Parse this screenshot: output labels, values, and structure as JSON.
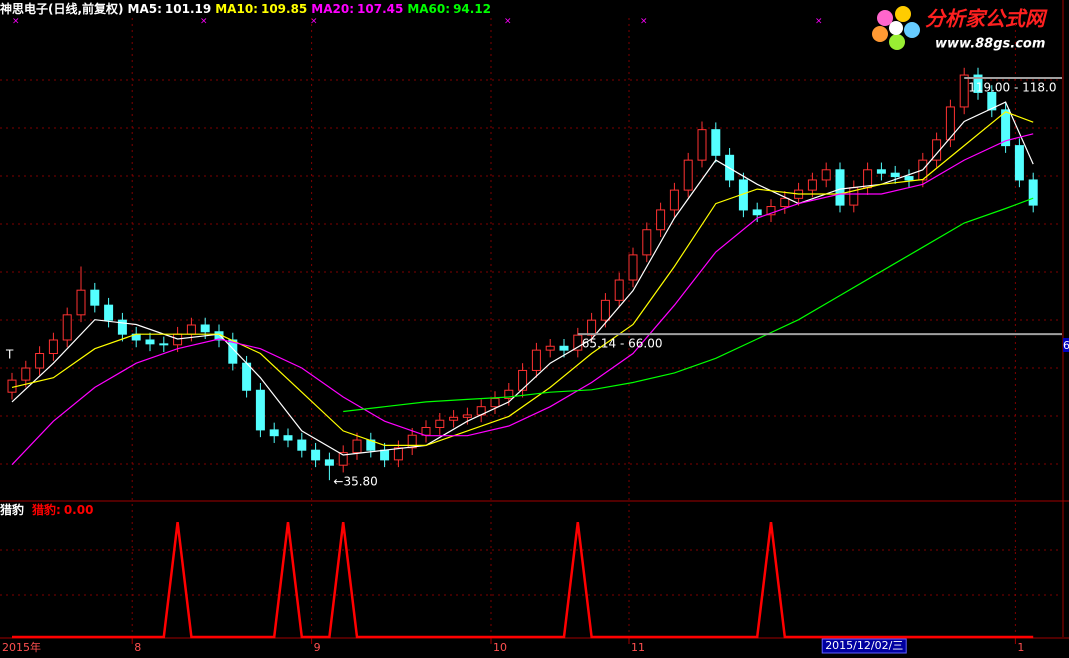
{
  "chart_data": [
    {
      "type": "candlestick",
      "title": "神思电子(日线,前复权)",
      "ylim": [
        31.7,
        131.4
      ],
      "open": [
        54,
        56.5,
        59,
        62,
        64.8,
        70,
        75.1,
        72,
        68.9,
        66,
        64.8,
        64,
        63.8,
        66,
        67.9,
        66.5,
        64.8,
        60,
        54.4,
        46.2,
        45,
        44.1,
        42,
        40,
        38.9,
        41.5,
        44.1,
        42,
        40,
        42.5,
        45.1,
        46.7,
        48.2,
        48.8,
        49.3,
        51,
        52.7,
        54.4,
        58.5,
        62.7,
        63.5,
        62.7,
        65.8,
        68.9,
        73,
        77.2,
        82.4,
        87.6,
        91.7,
        95.8,
        102,
        108.3,
        103,
        97.9,
        91.7,
        90.7,
        92.4,
        94.1,
        95.8,
        97.9,
        100,
        92.7,
        96.3,
        100,
        99.3,
        98.6,
        97.9,
        102,
        106.2,
        113,
        119.6,
        116,
        112.4,
        105,
        97.9
      ],
      "high": [
        58,
        60.5,
        63.5,
        66.3,
        71.5,
        80,
        76.6,
        73.5,
        70.4,
        67.5,
        66.3,
        65.5,
        67.5,
        69.4,
        69.4,
        68,
        66.3,
        61.5,
        55.9,
        47.7,
        46.5,
        45.6,
        43.5,
        41.5,
        43,
        45.6,
        45.6,
        43.5,
        44,
        46.6,
        48.2,
        49.7,
        50.3,
        50.8,
        52.5,
        54.2,
        55.9,
        60,
        64.2,
        65,
        65,
        67.3,
        70.4,
        74.5,
        78.7,
        83.9,
        89.1,
        93.2,
        97.3,
        103.5,
        110,
        109.8,
        104.5,
        99.4,
        93.2,
        93.9,
        95.6,
        97.3,
        99.4,
        101.5,
        101.5,
        97.8,
        101.5,
        101.5,
        100.8,
        100.1,
        103.5,
        107.7,
        114.5,
        121.1,
        121.1,
        117.5,
        113.9,
        106.5,
        99.4
      ],
      "low": [
        52.5,
        55,
        57.5,
        60.5,
        63.3,
        68.5,
        70.5,
        67.4,
        64.5,
        63.3,
        62.5,
        62.3,
        62.3,
        64.5,
        65,
        63.3,
        58.5,
        52.9,
        44.7,
        43.5,
        42.6,
        40.5,
        38.5,
        35.8,
        37.4,
        40,
        40.5,
        38.5,
        38.5,
        41,
        43.6,
        45.2,
        46.7,
        47.3,
        47.8,
        49.5,
        51.2,
        52.9,
        57,
        61.2,
        61.2,
        61.2,
        64.3,
        67.4,
        71.5,
        75.7,
        80.9,
        86.1,
        90.2,
        94.3,
        100.5,
        101.5,
        96.4,
        90.2,
        89.2,
        89.2,
        90.9,
        92.6,
        94.3,
        96.4,
        91.2,
        91.2,
        94.8,
        97.8,
        97.1,
        96.4,
        96.4,
        100.5,
        104.7,
        111.5,
        114.5,
        110.9,
        103.5,
        96.4,
        91.2
      ],
      "close": [
        56.5,
        59,
        62,
        64.8,
        70,
        75.1,
        72,
        68.9,
        66,
        64.8,
        64,
        63.8,
        66,
        67.9,
        66.5,
        64.8,
        60,
        54.4,
        46.2,
        45,
        44.1,
        42,
        40,
        38.9,
        41.5,
        44.1,
        42,
        40,
        42.5,
        45.1,
        46.7,
        48.2,
        48.8,
        49.3,
        51,
        52.7,
        54.4,
        58.5,
        62.7,
        63.5,
        62.7,
        65.8,
        68.9,
        73,
        77.2,
        82.4,
        87.6,
        91.7,
        95.8,
        102,
        108.3,
        103,
        97.9,
        91.7,
        90.7,
        92.4,
        94.1,
        95.8,
        97.9,
        100,
        92.7,
        96.3,
        100,
        99.3,
        98.6,
        97.9,
        102,
        106.2,
        113,
        119.6,
        116,
        112.4,
        105,
        97.9,
        92.7
      ],
      "up_color": "#ff3232",
      "down_color": "#54ffff",
      "ma_x": [
        0,
        3,
        6,
        9,
        12,
        15,
        18,
        21,
        24,
        27,
        30,
        33,
        36,
        39,
        42,
        45,
        48,
        51,
        54,
        57,
        60,
        63,
        66,
        69,
        72,
        74
      ],
      "series": [
        {
          "name": "MA5:",
          "color": "#ffffff",
          "last": 101.19,
          "values": [
            52,
            60,
            69,
            68,
            65,
            66,
            57,
            46,
            41,
            42,
            43,
            48,
            52,
            60,
            65,
            75,
            90,
            102,
            97,
            93,
            96,
            97,
            100,
            110,
            114,
            101.19
          ]
        },
        {
          "name": "MA10:",
          "color": "#ffff00",
          "last": 109.85,
          "values": [
            55,
            57,
            63,
            66,
            66,
            66,
            62,
            54,
            46,
            43,
            43,
            46,
            49,
            55,
            62,
            68,
            80,
            93,
            96,
            95,
            95,
            97,
            98,
            105,
            112,
            109.85
          ]
        },
        {
          "name": "MA20:",
          "color": "#ff00ff",
          "last": 107.45,
          "values": [
            39,
            48,
            55,
            60,
            63,
            65,
            63,
            59,
            53,
            48,
            45,
            45,
            47,
            51,
            56,
            62,
            72,
            83,
            90,
            93,
            95,
            95,
            97,
            102,
            106,
            107.45
          ]
        },
        {
          "name": "MA60:",
          "color": "#00ff00",
          "last": 94.12,
          "values": [
            null,
            null,
            null,
            null,
            null,
            null,
            null,
            null,
            50,
            51,
            52,
            52.5,
            53,
            54,
            54.5,
            56,
            58,
            61,
            65,
            69,
            74,
            79,
            84,
            89,
            92,
            94.12
          ]
        }
      ],
      "annotations": [
        {
          "index": 69,
          "value": 119,
          "label": "119.00 - 118.0",
          "line": true
        },
        {
          "index": 41,
          "value": 66,
          "label": "65.14 - 66.00",
          "line": true
        },
        {
          "index": 23,
          "value": 35.8,
          "label": "←35.80",
          "line": false
        }
      ],
      "xticks": [
        {
          "value": 0,
          "label": "2015年"
        },
        {
          "value": 9,
          "label": "8"
        },
        {
          "value": 22,
          "label": "9"
        },
        {
          "value": 35,
          "label": "10"
        },
        {
          "value": 45,
          "label": "11"
        },
        {
          "value": 73,
          "label": "1"
        }
      ],
      "cursor": {
        "index": 59,
        "label": "2015/12/02/三"
      },
      "marker_text": "T",
      "edge_text": "6"
    },
    {
      "type": "line",
      "title": "猎豹",
      "name": "猎豹:",
      "color": "#ff0000",
      "last": {
        "value": 0,
        "label": "0.00"
      },
      "ylim": [
        0,
        1.15
      ],
      "values": [
        0,
        0,
        0,
        0,
        0,
        0,
        0,
        0,
        0,
        0,
        0,
        0,
        1,
        0,
        0,
        0,
        0,
        0,
        0,
        0,
        1,
        0,
        0,
        0,
        1,
        0,
        0,
        0,
        0,
        0,
        0,
        0,
        0,
        0,
        0,
        0,
        0,
        0,
        0,
        0,
        0,
        1,
        0,
        0,
        0,
        0,
        0,
        0,
        0,
        0,
        0,
        0,
        0,
        0,
        0,
        1,
        0,
        0,
        0,
        0,
        0,
        0,
        0,
        0,
        0,
        0,
        0,
        0,
        0,
        0,
        0,
        0,
        0,
        0,
        0
      ]
    }
  ],
  "watermark": {
    "title": "分析家公式网",
    "url": "www.88gs.com"
  }
}
